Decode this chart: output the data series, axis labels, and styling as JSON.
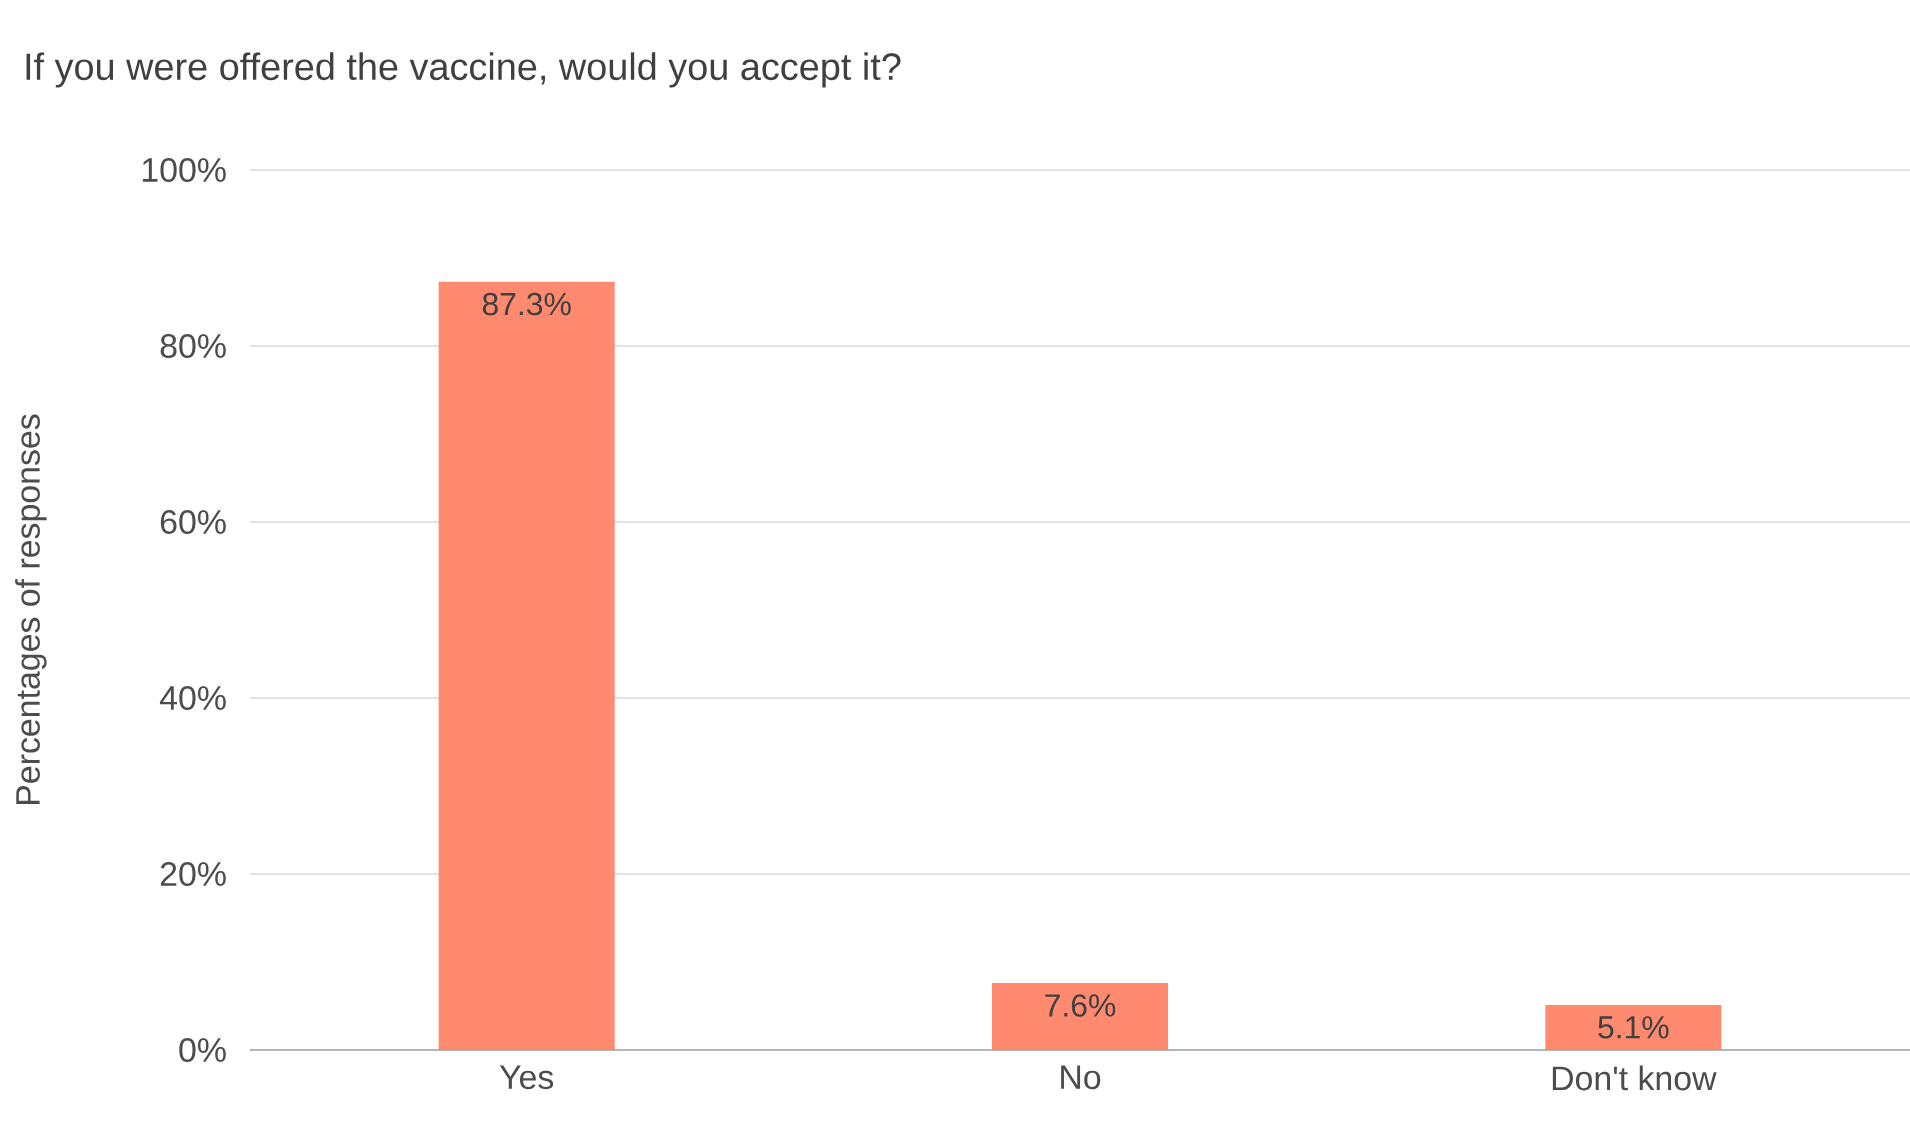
{
  "chart_data": {
    "type": "bar",
    "title": "If you were offered the vaccine, would you accept it?",
    "ylabel": "Percentages of responses",
    "categories": [
      "Yes",
      "No",
      "Don't know"
    ],
    "values": [
      87.3,
      7.6,
      5.1
    ],
    "value_labels": [
      "87.3%",
      "7.6%",
      "5.1%"
    ],
    "color": "#ff8a70",
    "ylim": [
      0,
      100
    ],
    "yticks": [
      {
        "value": 0,
        "label": "0%"
      },
      {
        "value": 20,
        "label": "20%"
      },
      {
        "value": 40,
        "label": "40%"
      },
      {
        "value": 60,
        "label": "60%"
      },
      {
        "value": 80,
        "label": "80%"
      },
      {
        "value": 100,
        "label": "100%"
      }
    ],
    "grid": "y"
  }
}
